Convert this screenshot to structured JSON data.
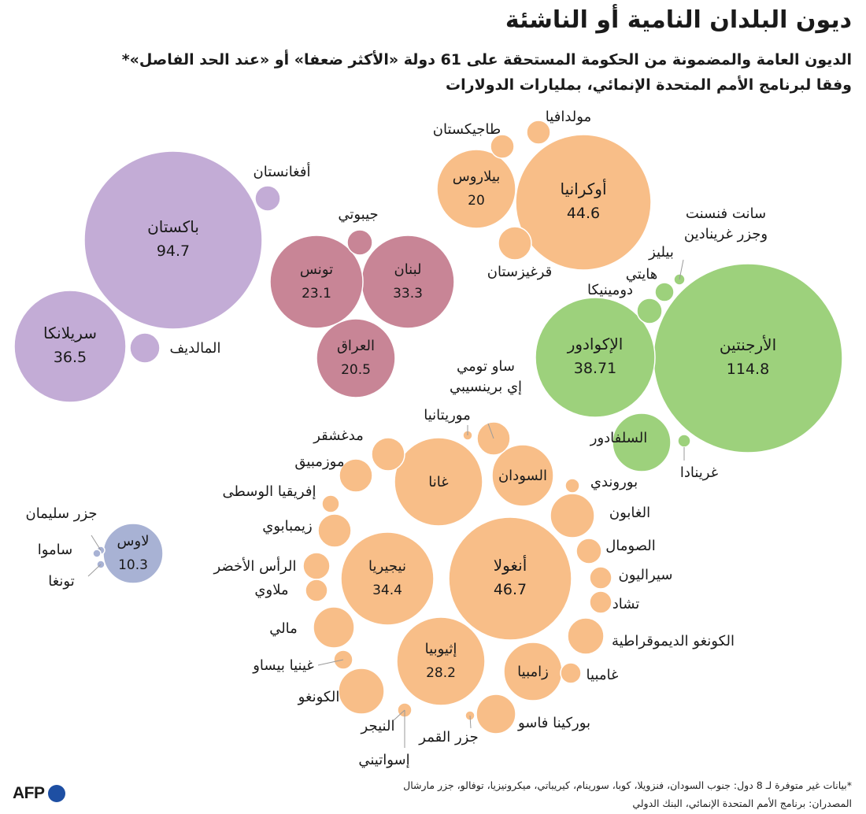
{
  "title": "ديون البلدان النامية أو الناشئة",
  "subtitle_line1": "الديون العامة والمضمونة من الحكومة المستحقة على 61 دولة «الأكثر ضعفا» أو «عند الحد الفاصل»*",
  "subtitle_line2": "وفقا لبرنامج الأمم المتحدة الإنمائي، بمليارات الدولارات",
  "footnote_line1": "*بيانات غير متوفرة لـ 8 دول: جنوب السودان، فنزويلا، كوبا، سورينام، كيريباتي، ميكرونيزيا، توفالو، جزر مارشال",
  "footnote_line2": "المصدران: برنامج الأمم المتحدة الإنمائي، البنك الدولي",
  "logo_text": "AFP",
  "colors": {
    "purple": "#c3acd6",
    "rose": "#c88596",
    "orange": "#f8be88",
    "green": "#9dd17c",
    "blue": "#a8b2d4"
  },
  "chart_data": {
    "type": "bubble",
    "unit": "billion USD",
    "groups": [
      {
        "color": "purple",
        "countries": [
          {
            "name": "باكستان",
            "value": 94.7
          },
          {
            "name": "سريلانكا",
            "value": 36.5
          },
          {
            "name": "أفغانستان",
            "value": null
          },
          {
            "name": "المالديف",
            "value": null
          }
        ]
      },
      {
        "color": "rose",
        "countries": [
          {
            "name": "لبنان",
            "value": 33.3
          },
          {
            "name": "تونس",
            "value": 23.1
          },
          {
            "name": "العراق",
            "value": 20.5
          },
          {
            "name": "جيبوتي",
            "value": null
          }
        ]
      },
      {
        "color": "orange",
        "countries": [
          {
            "name": "أوكرانيا",
            "value": 44.6
          },
          {
            "name": "بيلاروس",
            "value": 20
          },
          {
            "name": "طاجيكستان",
            "value": null
          },
          {
            "name": "مولدافيا",
            "value": null
          },
          {
            "name": "قرغيزستان",
            "value": null
          }
        ]
      },
      {
        "color": "green",
        "countries": [
          {
            "name": "الأرجنتين",
            "value": 114.8
          },
          {
            "name": "الإكوادور",
            "value": 38.71
          },
          {
            "name": "السلفادور",
            "value": null
          },
          {
            "name": "دومينيكا",
            "value": null
          },
          {
            "name": "هايتي",
            "value": null
          },
          {
            "name": "بيليز",
            "value": null
          },
          {
            "name": "سانت فنسنت وجزر غرينادين",
            "value": null
          },
          {
            "name": "غرينادا",
            "value": null
          }
        ]
      },
      {
        "color": "blue",
        "countries": [
          {
            "name": "لاوس",
            "value": 10.3
          },
          {
            "name": "جزر سليمان",
            "value": null
          },
          {
            "name": "ساموا",
            "value": null
          },
          {
            "name": "تونغا",
            "value": null
          }
        ]
      },
      {
        "color": "orange",
        "countries": [
          {
            "name": "أنغولا",
            "value": 46.7
          },
          {
            "name": "نيجيريا",
            "value": 34.4
          },
          {
            "name": "إثيوبيا",
            "value": 28.2
          },
          {
            "name": "غانا",
            "value": null
          },
          {
            "name": "السودان",
            "value": null
          },
          {
            "name": "زامبيا",
            "value": null
          },
          {
            "name": "موريتانيا",
            "value": null
          },
          {
            "name": "ساو تومي إي برينسيبي",
            "value": null
          },
          {
            "name": "مدغشقر",
            "value": null
          },
          {
            "name": "موزمبيق",
            "value": null
          },
          {
            "name": "إفريقيا الوسطى",
            "value": null
          },
          {
            "name": "زيمبابوي",
            "value": null
          },
          {
            "name": "الرأس الأخضر",
            "value": null
          },
          {
            "name": "ملاوي",
            "value": null
          },
          {
            "name": "مالي",
            "value": null
          },
          {
            "name": "غينيا بيساو",
            "value": null
          },
          {
            "name": "الكونغو",
            "value": null
          },
          {
            "name": "النيجر",
            "value": null
          },
          {
            "name": "إسواتيني",
            "value": null
          },
          {
            "name": "جزر القمر",
            "value": null
          },
          {
            "name": "بوركينا فاسو",
            "value": null
          },
          {
            "name": "غامبيا",
            "value": null
          },
          {
            "name": "الكونغو الديموقراطية",
            "value": null
          },
          {
            "name": "تشاد",
            "value": null
          },
          {
            "name": "سيراليون",
            "value": null
          },
          {
            "name": "الصومال",
            "value": null
          },
          {
            "name": "الغابون",
            "value": null
          },
          {
            "name": "بوروندي",
            "value": null
          }
        ]
      }
    ]
  }
}
